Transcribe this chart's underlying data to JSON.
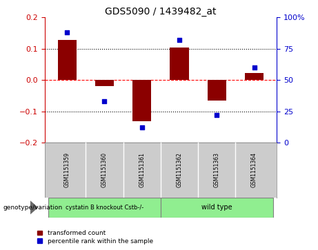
{
  "title": "GDS5090 / 1439482_at",
  "samples": [
    "GSM1151359",
    "GSM1151360",
    "GSM1151361",
    "GSM1151362",
    "GSM1151363",
    "GSM1151364"
  ],
  "bar_values": [
    0.128,
    -0.02,
    -0.132,
    0.105,
    -0.066,
    0.022
  ],
  "percentile_values": [
    88,
    33,
    12,
    82,
    22,
    60
  ],
  "bar_color": "#8B0000",
  "dot_color": "#0000CC",
  "ylim_left": [
    -0.2,
    0.2
  ],
  "ylim_right": [
    0,
    100
  ],
  "yticks_left": [
    -0.2,
    -0.1,
    0.0,
    0.1,
    0.2
  ],
  "yticks_right": [
    0,
    25,
    50,
    75,
    100
  ],
  "ytick_labels_right": [
    "0",
    "25",
    "50",
    "75",
    "100%"
  ],
  "hlines_dotted": [
    -0.1,
    0.1
  ],
  "hline_dashed": 0.0,
  "group1_label": "cystatin B knockout Cstb-/-",
  "group2_label": "wild type",
  "group1_indices": [
    0,
    1,
    2
  ],
  "group2_indices": [
    3,
    4,
    5
  ],
  "group_color": "#90EE90",
  "genotype_label": "genotype/variation",
  "legend_bar_label": "transformed count",
  "legend_dot_label": "percentile rank within the sample",
  "bar_width": 0.5,
  "left_tick_color": "#cc0000",
  "right_tick_color": "#0000cc",
  "sample_bg_color": "#cccccc"
}
